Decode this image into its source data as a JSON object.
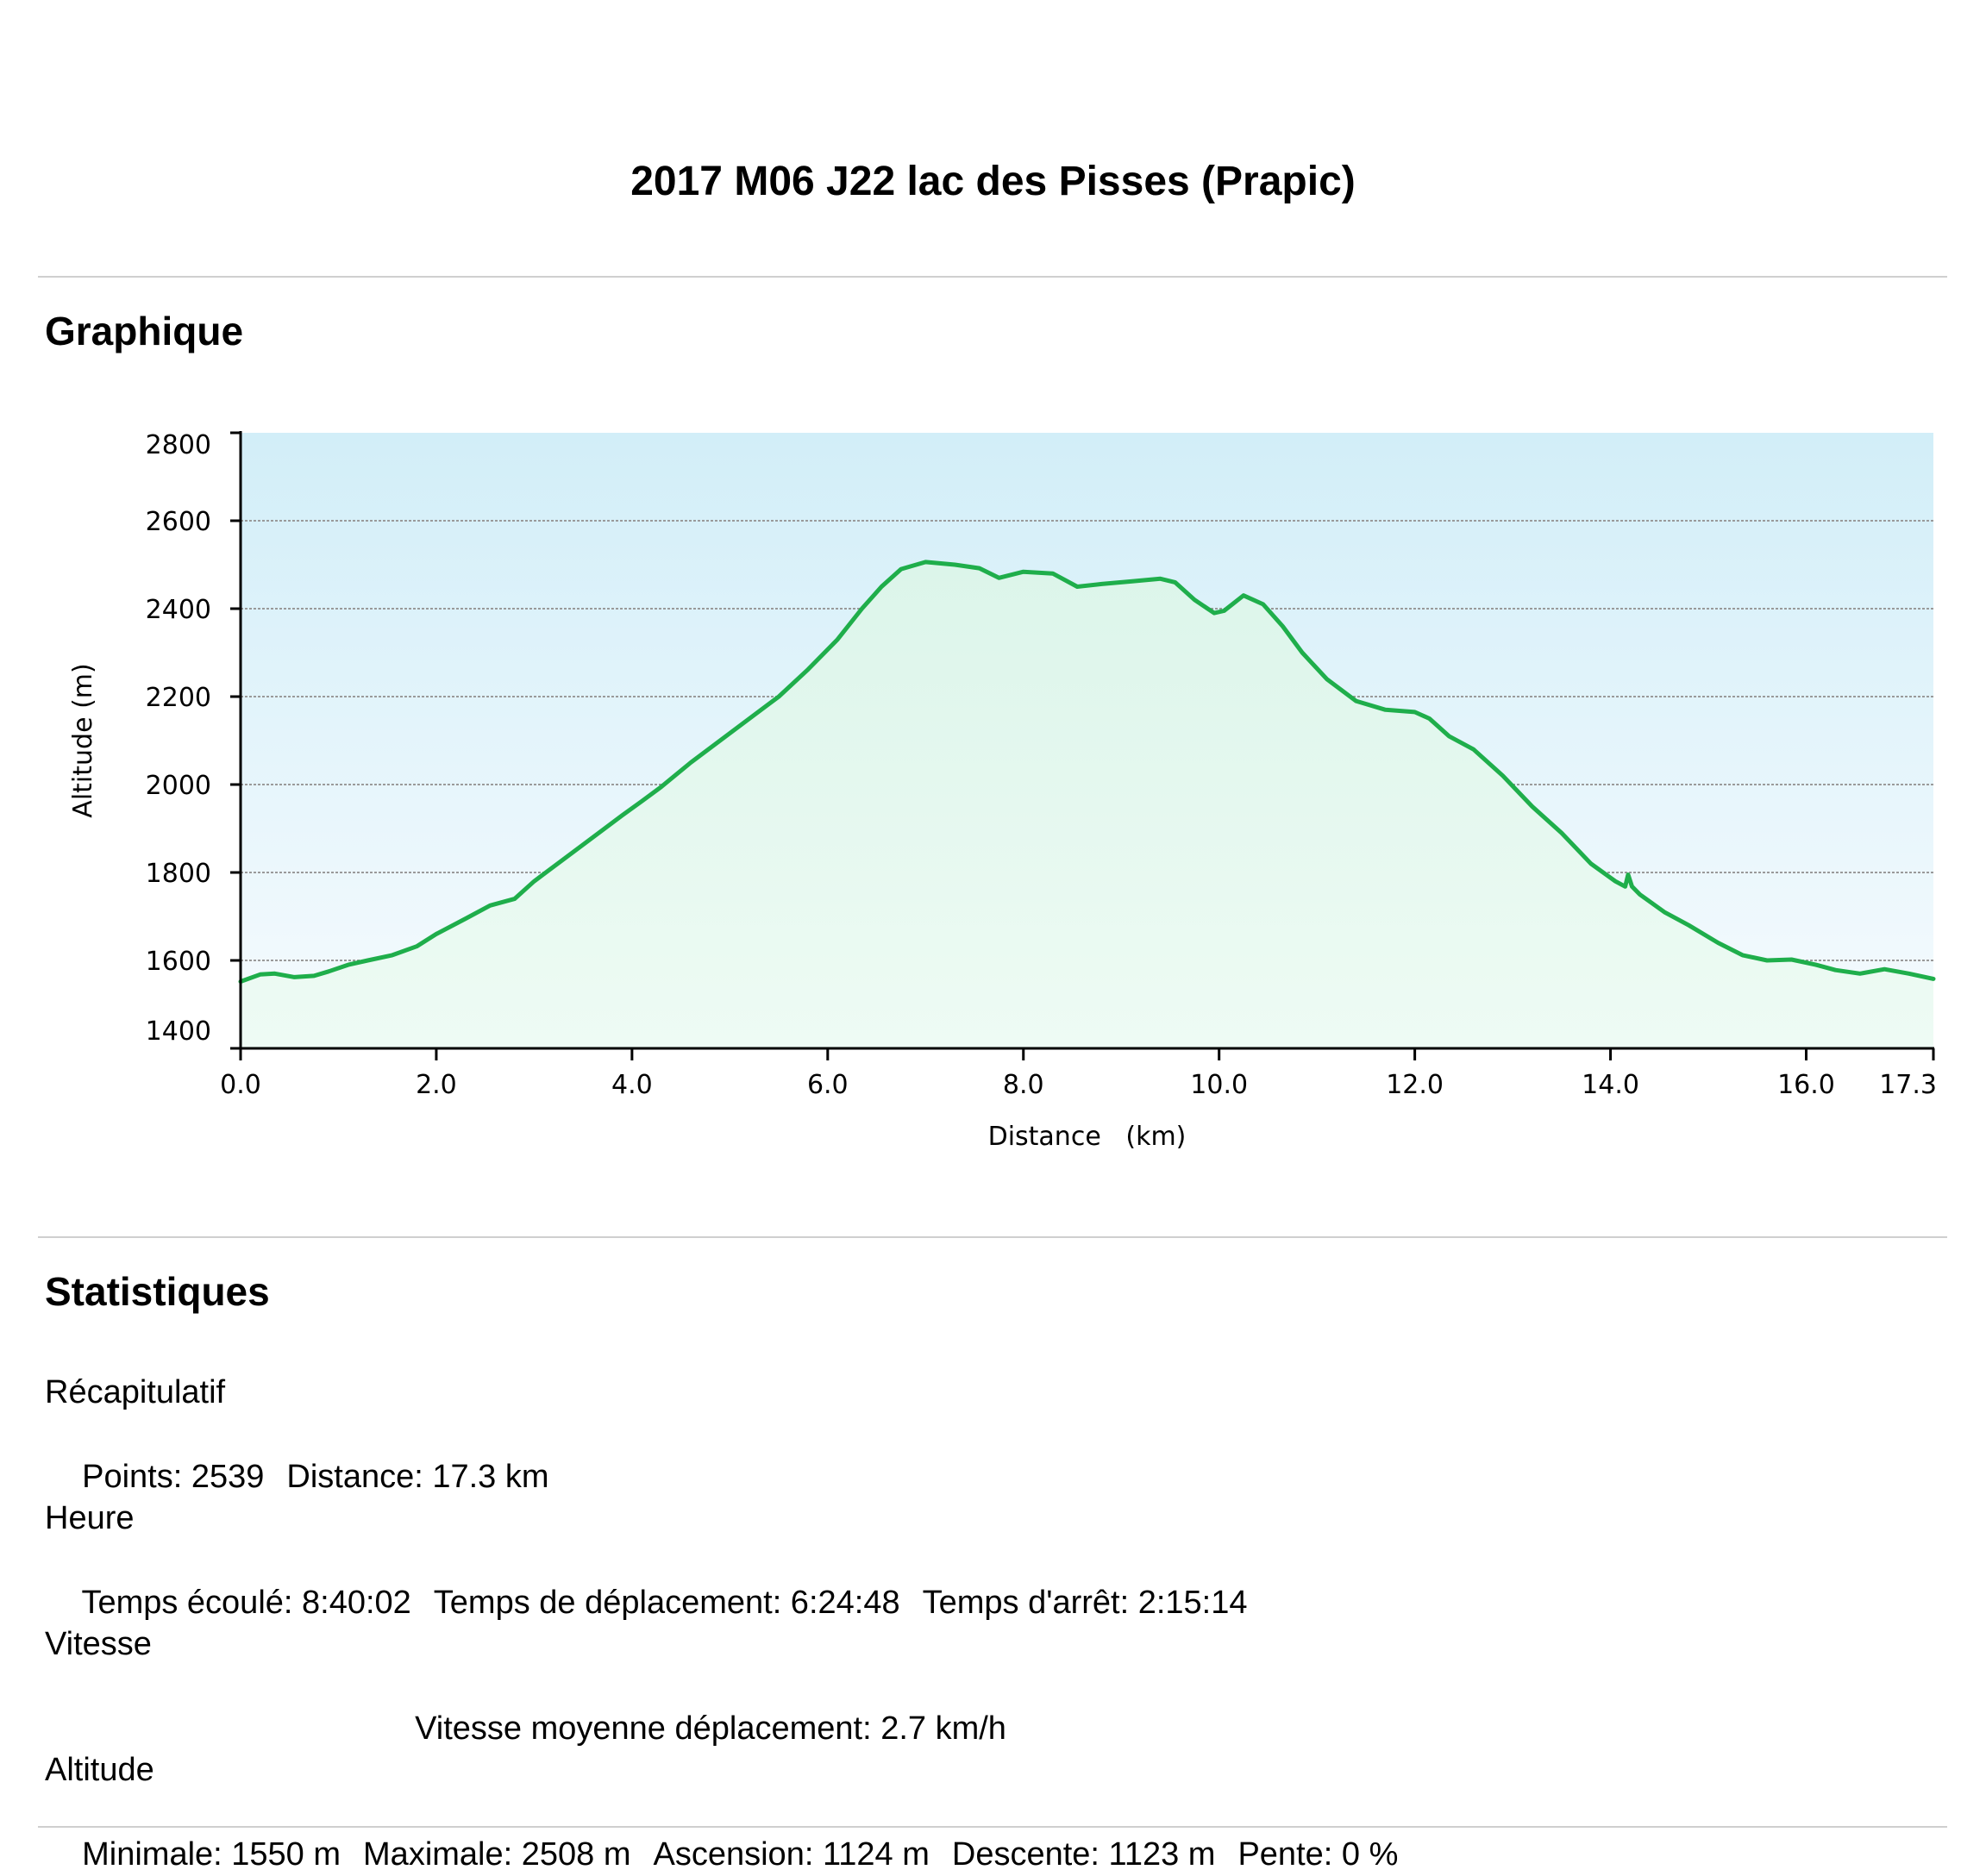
{
  "page": {
    "title": "2017 M06 J22 lac des Pisses (Prapic)"
  },
  "graph_section": {
    "heading": "Graphique"
  },
  "stats_section": {
    "heading": "Statistiques",
    "summary": {
      "title": "Récapitulatif",
      "points": "Points: 2539",
      "distance": "Distance: 17.3 km"
    },
    "time": {
      "title": "Heure",
      "elapsed": "Temps écoulé: 8:40:02",
      "moving": "Temps de déplacement: 6:24:48",
      "stopped": "Temps d'arrêt: 2:15:14"
    },
    "speed": {
      "title": "Vitesse",
      "moving_avg": "Vitesse moyenne déplacement: 2.7 km/h"
    },
    "altitude": {
      "title": "Altitude",
      "min": "Minimale: 1550 m",
      "max": "Maximale: 2508 m",
      "ascent": "Ascension: 1124 m",
      "descent": "Descente: 1123 m",
      "slope": "Pente: 0 %"
    }
  },
  "chart_data": {
    "type": "area",
    "title": "",
    "xlabel": "Distance (km)",
    "ylabel": "Altitude (m)",
    "xlim": [
      0,
      17.3
    ],
    "ylim": [
      1400,
      2800
    ],
    "x_ticks": [
      "0.0",
      "2.0",
      "4.0",
      "6.0",
      "8.0",
      "10.0",
      "12.0",
      "14.0",
      "16.0",
      "17.3"
    ],
    "x_tick_values": [
      0,
      2,
      4,
      6,
      8,
      10,
      12,
      14,
      16,
      17.3
    ],
    "y_ticks": [
      1400,
      1600,
      1800,
      2000,
      2200,
      2400,
      2600,
      2800
    ],
    "grid": true,
    "colors": {
      "line": "#1fae4b",
      "fill_top": "#dcf5ea",
      "fill_bottom": "#eefbf4",
      "bg_top": "#d2eef8",
      "bg_bottom": "#f6fbfe",
      "grid": "#9a9a9a",
      "axis": "#000000"
    },
    "series": [
      {
        "x": [
          0.0,
          0.2,
          0.35,
          0.55,
          0.75,
          0.9,
          1.1,
          1.3,
          1.55,
          1.8,
          2.0,
          2.3,
          2.55,
          2.8,
          3.0,
          3.3,
          3.6,
          3.9,
          4.1,
          4.3,
          4.6,
          4.9,
          5.2,
          5.5,
          5.8,
          6.1,
          6.35,
          6.55,
          6.75,
          7.0,
          7.3,
          7.55,
          7.75,
          8.0,
          8.3,
          8.55,
          8.8,
          9.1,
          9.4,
          9.55,
          9.75,
          9.95,
          10.05,
          10.25,
          10.45,
          10.65,
          10.85,
          11.1,
          11.4,
          11.7,
          12.0,
          12.15,
          12.35,
          12.6,
          12.9,
          13.2,
          13.5,
          13.8,
          14.05,
          14.15,
          14.18,
          14.22,
          14.3,
          14.55,
          14.8,
          15.1,
          15.35,
          15.6,
          15.85,
          16.1,
          16.3,
          16.55,
          16.8,
          17.05,
          17.3
        ],
        "y": [
          1552,
          1568,
          1570,
          1562,
          1565,
          1575,
          1590,
          1600,
          1612,
          1632,
          1660,
          1695,
          1725,
          1740,
          1780,
          1830,
          1880,
          1930,
          1962,
          1995,
          2050,
          2100,
          2150,
          2200,
          2262,
          2330,
          2400,
          2450,
          2490,
          2506,
          2500,
          2492,
          2470,
          2484,
          2480,
          2450,
          2456,
          2462,
          2468,
          2460,
          2420,
          2390,
          2395,
          2430,
          2410,
          2360,
          2300,
          2240,
          2190,
          2170,
          2165,
          2150,
          2110,
          2080,
          2020,
          1950,
          1890,
          1820,
          1780,
          1768,
          1795,
          1768,
          1750,
          1710,
          1680,
          1640,
          1612,
          1600,
          1602,
          1590,
          1578,
          1570,
          1580,
          1570,
          1558
        ]
      }
    ]
  }
}
